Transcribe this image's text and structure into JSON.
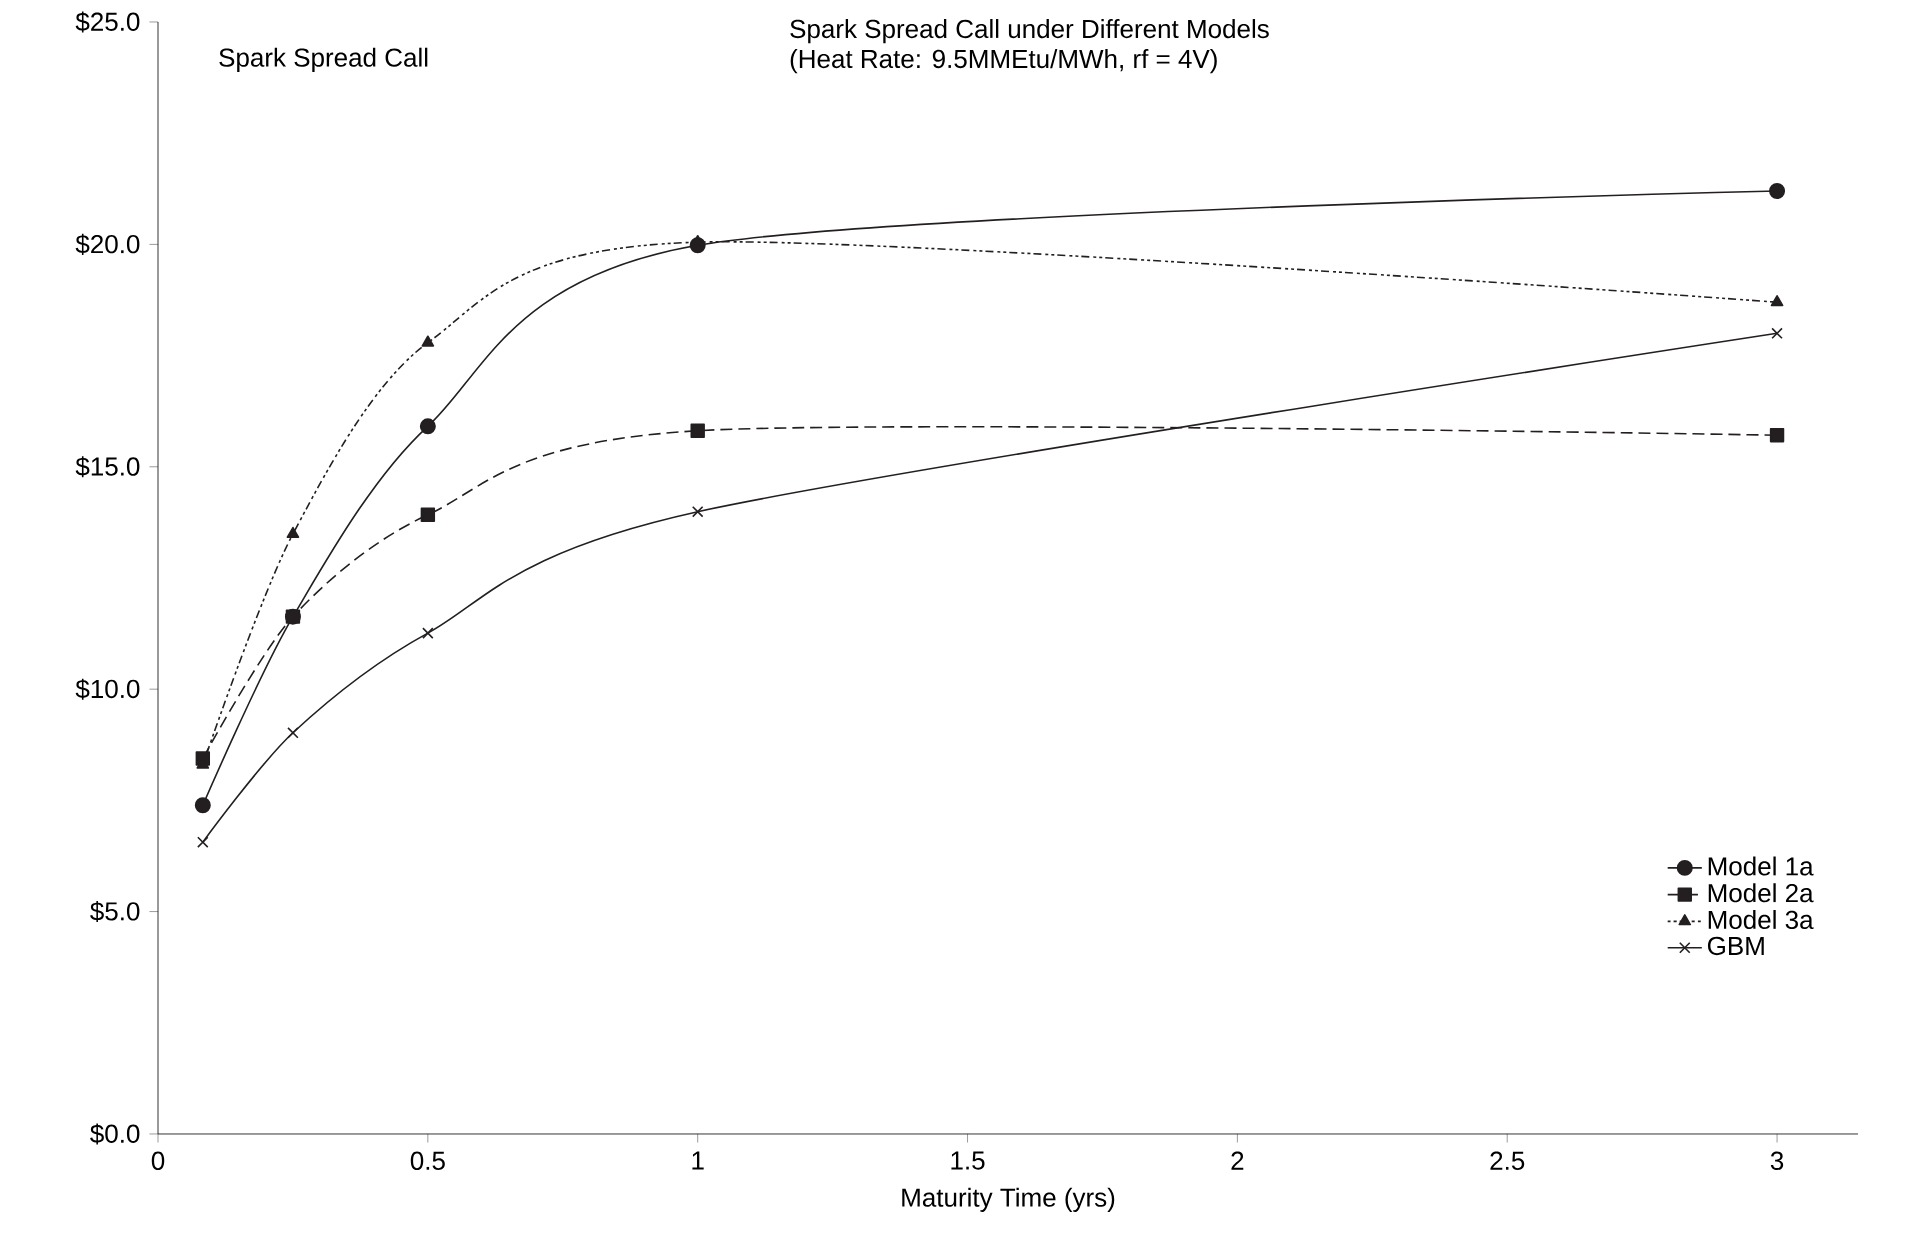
{
  "chart_data": {
    "type": "line",
    "title": "Spark Spread Call under Different Models",
    "subtitle": "(Heat Rate: 9.5MMEtu/MWh, rf = 4V)",
    "xlabel": "Maturity Time (yrs)",
    "annotations": [
      "Spark Spread Call"
    ],
    "x": [
      0.083,
      0.25,
      0.5,
      1,
      3
    ],
    "series": [
      {
        "name": "Model 1a",
        "color": "#231f20",
        "marker": "circle",
        "line_style": "solid",
        "values": [
          7.39,
          11.63,
          15.91,
          19.98,
          21.2
        ]
      },
      {
        "name": "Model 2a",
        "color": "#231f20",
        "marker": "square",
        "line_style": "dashed",
        "values": [
          8.44,
          11.63,
          13.92,
          15.81,
          15.71
        ]
      },
      {
        "name": "Model 3a",
        "color": "#231f20",
        "marker": "triangle",
        "line_style": "dotted",
        "values": [
          8.3,
          13.49,
          17.79,
          20.05,
          18.7
        ]
      },
      {
        "name": "GBM",
        "color": "#231f20",
        "marker": "cross",
        "line_style": "solid",
        "values": [
          6.56,
          9.02,
          11.26,
          13.99,
          18.0
        ]
      }
    ],
    "xlim": [
      0,
      3.15
    ],
    "xticks": [
      0,
      0.5,
      1,
      1.5,
      2,
      2.5,
      3
    ],
    "ylim": [
      0,
      25
    ],
    "yticks": [
      {
        "value": 0,
        "label": "$0.0"
      },
      {
        "value": 5,
        "label": "$5.0"
      },
      {
        "value": 10,
        "label": "$10.0"
      },
      {
        "value": 15,
        "label": "$15.0"
      },
      {
        "value": 20,
        "label": "$20.0"
      },
      {
        "value": 25,
        "label": "$25.0"
      }
    ],
    "grid": false,
    "legend": "bottom right"
  }
}
